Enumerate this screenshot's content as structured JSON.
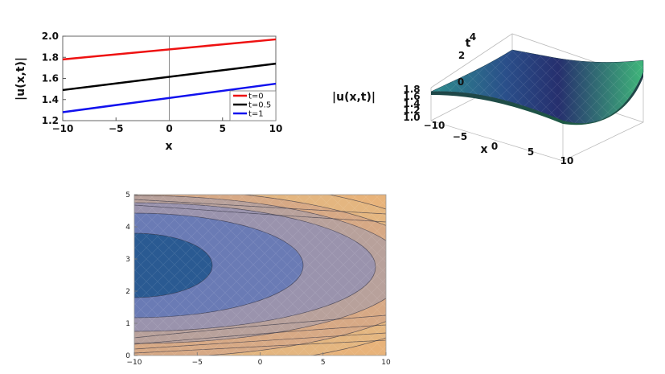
{
  "chart_data": [
    {
      "type": "line",
      "xlabel": "x",
      "ylabel": "|u(x,t)|",
      "xlim": [
        -10,
        10
      ],
      "ylim": [
        1.2,
        2.0
      ],
      "x_ticks": [
        "−10",
        "−5",
        "0",
        "5",
        "10"
      ],
      "y_ticks": [
        "1.2",
        "1.4",
        "1.6",
        "1.8",
        "2.0"
      ],
      "legend_position": "bottom-right",
      "series": [
        {
          "name": "t=0",
          "color": "#ee1111",
          "x": [
            -10,
            10
          ],
          "y": [
            1.78,
            1.97
          ]
        },
        {
          "name": "t=0.5",
          "color": "#000000",
          "x": [
            -10,
            10
          ],
          "y": [
            1.49,
            1.74
          ]
        },
        {
          "name": "t=1",
          "color": "#1111ee",
          "x": [
            -10,
            10
          ],
          "y": [
            1.28,
            1.55
          ]
        }
      ]
    },
    {
      "type": "surface",
      "zlabel": "|u(x,t)|",
      "xlabel": "x",
      "ylabel": "t",
      "x_ticks": [
        "−10",
        "−5",
        "0",
        "5",
        "10"
      ],
      "t_ticks": [
        "0",
        "2",
        "4"
      ],
      "z_ticks": [
        "1.8",
        "1.6",
        "1.4",
        "1.2",
        "1.0"
      ],
      "colormap": "viridis"
    },
    {
      "type": "heatmap",
      "subtype": "contour",
      "xlim": [
        -10,
        10
      ],
      "ylim": [
        0,
        5
      ],
      "x_ticks": [
        "−10",
        "−5",
        "0",
        "5",
        "10"
      ],
      "y_ticks": [
        "0",
        "1",
        "2",
        "3",
        "4",
        "5"
      ],
      "colors": {
        "low": "#2a5a92",
        "mid": "#7a84b8",
        "high": "#f1c286"
      }
    }
  ]
}
